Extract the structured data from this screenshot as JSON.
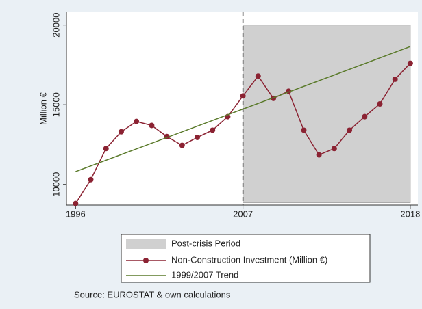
{
  "chart_data": {
    "type": "line",
    "y_label": "Million €",
    "source": "Source: EUROSTAT & own calculations",
    "xlim": [
      1995.4,
      2018.5
    ],
    "ylim": [
      8700,
      20800
    ],
    "xticks": [
      1996,
      2007,
      2018
    ],
    "yticks": [
      10000,
      15000,
      20000
    ],
    "vline": 2007,
    "shade": {
      "name": "Post-crisis Period",
      "color": "#d0d0d0",
      "x": [
        2007,
        2018
      ],
      "y": [
        8850,
        20000
      ]
    },
    "series": [
      {
        "name": "Non-Construction Investment (Million €)",
        "color": "#8b2232",
        "x": [
          1996,
          1997,
          1998,
          1999,
          2000,
          2001,
          2002,
          2003,
          2004,
          2005,
          2006,
          2007,
          2008,
          2009,
          2010,
          2011,
          2012,
          2013,
          2014,
          2015,
          2016,
          2017,
          2018
        ],
        "values": [
          8800,
          10300,
          12250,
          13300,
          13950,
          13700,
          13000,
          12450,
          12950,
          13400,
          14250,
          15550,
          16800,
          15400,
          15850,
          13400,
          11850,
          12250,
          13400,
          14250,
          15050,
          16600,
          17600
        ]
      },
      {
        "name": "1999/2007 Trend",
        "color": "#5a7a2a",
        "x": [
          1996,
          2018
        ],
        "values": [
          10800,
          18650
        ]
      }
    ]
  }
}
